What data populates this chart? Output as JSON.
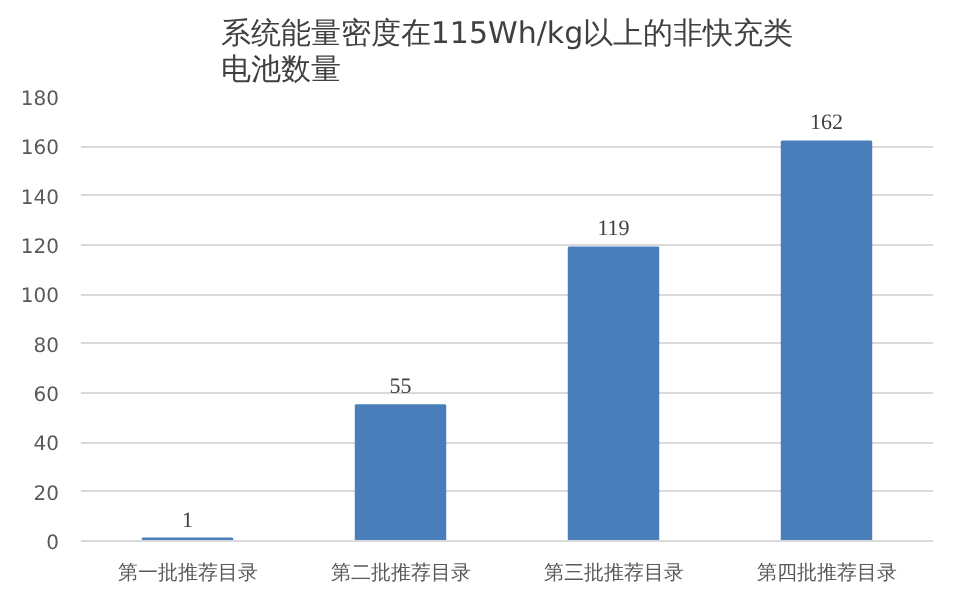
{
  "chart_data": {
    "type": "bar",
    "title": "系统能量密度在115Wh/kg以上的非快充类电池数量",
    "categories": [
      "第一批推荐目录",
      "第二批推荐目录",
      "第三批推荐目录",
      "第四批推荐目录"
    ],
    "values": [
      1,
      55,
      119,
      162
    ],
    "color": "#4a7ebb",
    "data_labels": true,
    "ylim": [
      0,
      180
    ],
    "yticks": [
      0,
      20,
      40,
      60,
      80,
      100,
      120,
      140,
      160,
      180
    ],
    "grid": "y"
  }
}
